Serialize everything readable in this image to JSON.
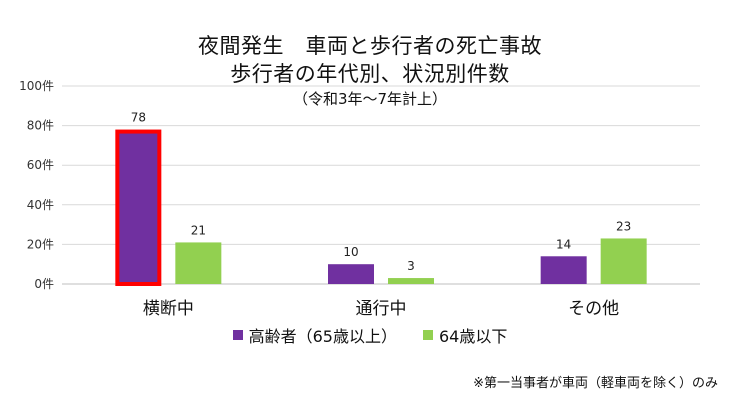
{
  "colors": {
    "elderly": "#7030a0",
    "younger": "#92d050",
    "highlight": "#ff0000",
    "grid": "#d9d9d9"
  },
  "chart_data": {
    "type": "bar",
    "title_lines": [
      "夜間発生　車両と歩行者の死亡事故",
      "歩行者の年代別、状況別件数",
      "（令和3年～7年計上）"
    ],
    "categories": [
      "横断中",
      "通行中",
      "その他"
    ],
    "series": [
      {
        "name": "高齢者（65歳以上）",
        "values": [
          78,
          10,
          14
        ],
        "color": "#7030a0"
      },
      {
        "name": "64歳以下",
        "values": [
          21,
          3,
          23
        ],
        "color": "#92d050"
      }
    ],
    "ylim": [
      0,
      100
    ],
    "yticks": [
      0,
      20,
      40,
      60,
      80,
      100
    ],
    "ytick_labels": [
      "0件",
      "20件",
      "40件",
      "60件",
      "80件",
      "100件"
    ],
    "grid": true,
    "legend_position": "bottom",
    "highlighted": {
      "series": 0,
      "category": 0
    },
    "footnote": "※第一当事者が車両（軽車両を除く）のみ"
  }
}
